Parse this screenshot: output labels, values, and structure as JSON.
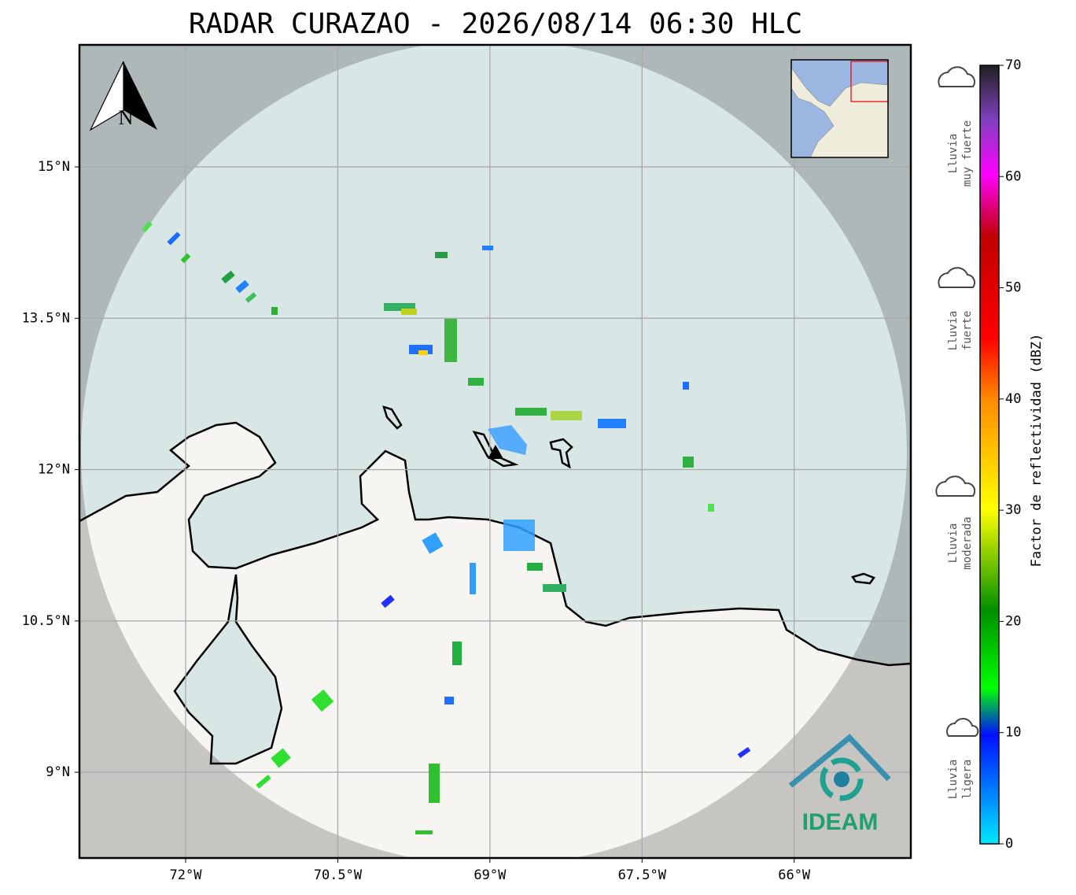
{
  "title": "RADAR CURAZAO - 2026/08/14 06:30 HLC",
  "map": {
    "xlim": [
      -73.047,
      -64.85
    ],
    "ylim": [
      8.15,
      16.21
    ],
    "xticks": [
      {
        "value": -72,
        "label": "72°W"
      },
      {
        "value": -70.5,
        "label": "70.5°W"
      },
      {
        "value": -69,
        "label": "69°W"
      },
      {
        "value": -67.5,
        "label": "67.5°W"
      },
      {
        "value": -66,
        "label": "66°W"
      }
    ],
    "yticks": [
      {
        "value": 15,
        "label": "15°N"
      },
      {
        "value": 13.5,
        "label": "13.5°N"
      },
      {
        "value": 12,
        "label": "12°N"
      },
      {
        "value": 10.5,
        "label": "10.5°N"
      },
      {
        "value": 9,
        "label": "9°N"
      }
    ],
    "north_label": "N",
    "logo": "IDEAM"
  },
  "colorbar": {
    "label": "Factor de reflectividad (dBZ)",
    "range": [
      0,
      70
    ],
    "ticks": [
      0,
      10,
      20,
      30,
      40,
      50,
      60,
      70
    ]
  },
  "legend": [
    {
      "lines": [
        "Lluvia",
        "muy fuerte"
      ]
    },
    {
      "lines": [
        "Lluvia",
        "fuerte"
      ]
    },
    {
      "lines": [
        "Lluvia",
        "moderada"
      ]
    },
    {
      "lines": [
        "Lluvia",
        "ligera"
      ]
    }
  ]
}
